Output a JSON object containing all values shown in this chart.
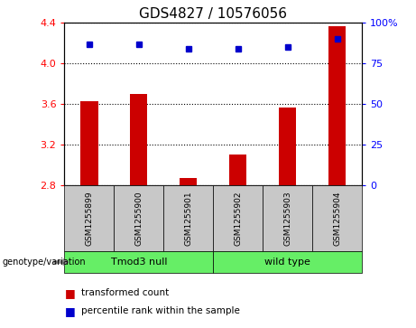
{
  "title": "GDS4827 / 10576056",
  "samples": [
    "GSM1255899",
    "GSM1255900",
    "GSM1255901",
    "GSM1255902",
    "GSM1255903",
    "GSM1255904"
  ],
  "red_values": [
    3.63,
    3.7,
    2.87,
    3.1,
    3.57,
    4.37
  ],
  "blue_values": [
    87,
    87,
    84,
    84,
    85,
    90
  ],
  "ylim_left": [
    2.8,
    4.4
  ],
  "ylim_right": [
    0,
    100
  ],
  "yticks_left": [
    2.8,
    3.2,
    3.6,
    4.0,
    4.4
  ],
  "yticks_right": [
    0,
    25,
    50,
    75,
    100
  ],
  "group1_label": "Tmod3 null",
  "group2_label": "wild type",
  "group_label": "genotype/variation",
  "bar_color": "#CC0000",
  "dot_color": "#0000CC",
  "bar_width": 0.35,
  "background_color": "#ffffff",
  "tick_area_color": "#C8C8C8",
  "green_color": "#66EE66",
  "title_fontsize": 11,
  "tick_fontsize": 8,
  "sample_fontsize": 6.5,
  "group_fontsize": 8,
  "legend_fontsize": 7.5
}
